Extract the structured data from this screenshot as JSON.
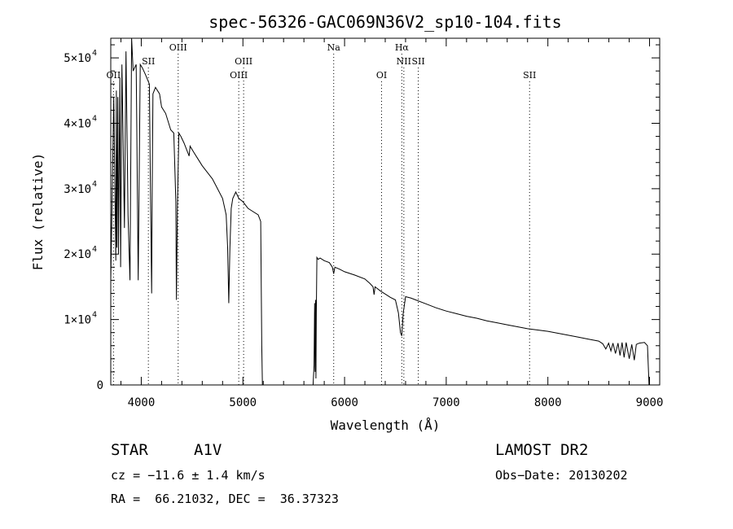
{
  "chart_data": {
    "type": "line",
    "title": "spec-56326-GAC069N36V2_sp10-104.fits",
    "xlabel": "Wavelength (Å)",
    "ylabel": "Flux (relative)",
    "xlim": [
      3700,
      9100
    ],
    "ylim": [
      0,
      53000
    ],
    "x_ticks": [
      4000,
      5000,
      6000,
      7000,
      8000,
      9000
    ],
    "y_ticks": [
      {
        "value": 0,
        "label": "0",
        "exp": ""
      },
      {
        "value": 10000,
        "label": "1×10",
        "exp": "4"
      },
      {
        "value": 20000,
        "label": "2×10",
        "exp": "4"
      },
      {
        "value": 30000,
        "label": "3×10",
        "exp": "4"
      },
      {
        "value": 40000,
        "label": "4×10",
        "exp": "4"
      },
      {
        "value": 50000,
        "label": "5×10",
        "exp": "4"
      }
    ],
    "spectral_lines": [
      {
        "label": "OII",
        "wavelength": 3727,
        "row": 2
      },
      {
        "label": "SII",
        "wavelength": 4070,
        "row": 1
      },
      {
        "label": "OIII",
        "wavelength": 4363,
        "row": 0
      },
      {
        "label": "OIII",
        "wavelength": 4959,
        "row": 2
      },
      {
        "label": "OIII",
        "wavelength": 5007,
        "row": 1
      },
      {
        "label": "Na",
        "wavelength": 5893,
        "row": 0
      },
      {
        "label": "OI",
        "wavelength": 6364,
        "row": 2
      },
      {
        "label": "Hα",
        "wavelength": 6563,
        "row": 0
      },
      {
        "label": "NII",
        "wavelength": 6583,
        "row": 1
      },
      {
        "label": "SII",
        "wavelength": 6725,
        "row": 1
      },
      {
        "label": "SII",
        "wavelength": 7820,
        "row": 2
      }
    ],
    "series": [
      {
        "x": [
          3700,
          3730,
          3750,
          3755,
          3760,
          3770,
          3775,
          3790,
          3797,
          3810,
          3835,
          3850,
          3870,
          3889,
          3905,
          3920,
          3950,
          3970,
          3990,
          4010,
          4040,
          4080,
          4090,
          4102,
          4108,
          4115,
          4140,
          4180,
          4200,
          4240,
          4290,
          4320,
          4340,
          4346,
          4355,
          4370,
          4390,
          4420,
          4471,
          4480,
          4520,
          4560,
          4600,
          4650,
          4700,
          4750,
          4800,
          4835,
          4850,
          4861,
          4872,
          4885,
          4900,
          4930,
          4960,
          5000,
          5050,
          5100,
          5150,
          5175,
          5185,
          5192,
          5205,
          5250,
          5300,
          5400,
          5500,
          5600,
          5660,
          5690,
          5700,
          5705,
          5710,
          5715,
          5718,
          5722,
          5728,
          5740,
          5760,
          5800,
          5850,
          5880,
          5893,
          5905,
          5950,
          6000,
          6100,
          6200,
          6250,
          6280,
          6290,
          6300,
          6350,
          6400,
          6450,
          6500,
          6530,
          6550,
          6563,
          6577,
          6600,
          6650,
          6700,
          6800,
          6900,
          7000,
          7100,
          7200,
          7300,
          7400,
          7500,
          7600,
          7700,
          7800,
          7900,
          8000,
          8100,
          8200,
          8300,
          8400,
          8500,
          8540,
          8570,
          8598,
          8620,
          8640,
          8665,
          8690,
          8710,
          8730,
          8750,
          8770,
          8800,
          8825,
          8850,
          8870,
          8900,
          8950,
          8980,
          8995,
          9000
        ],
        "y": [
          16000,
          44000,
          19000,
          45000,
          21000,
          44000,
          20000,
          47000,
          18000,
          49000,
          24000,
          51000,
          26000,
          16000,
          53000,
          48000,
          49000,
          16000,
          49000,
          48500,
          47500,
          46000,
          30000,
          14000,
          30000,
          44500,
          45500,
          44500,
          42500,
          41500,
          39000,
          38500,
          28000,
          13000,
          27000,
          38500,
          38000,
          37000,
          35000,
          36500,
          35500,
          34500,
          33500,
          32500,
          31500,
          30000,
          28500,
          26000,
          21000,
          12500,
          21000,
          27000,
          28500,
          29500,
          28500,
          28000,
          27000,
          26500,
          26000,
          25000,
          6000,
          0,
          0,
          0,
          0,
          0,
          0,
          0,
          0,
          0,
          3000,
          12500,
          2000,
          13000,
          1000,
          11000,
          19500,
          19200,
          19400,
          19000,
          18700,
          18000,
          17000,
          18000,
          17700,
          17300,
          16800,
          16200,
          15500,
          15000,
          13800,
          15000,
          14400,
          13900,
          13400,
          13000,
          11000,
          8000,
          7500,
          11000,
          13500,
          13300,
          13000,
          12400,
          11800,
          11300,
          10900,
          10500,
          10200,
          9800,
          9500,
          9200,
          8900,
          8600,
          8400,
          8200,
          7900,
          7600,
          7300,
          7000,
          6700,
          6300,
          5500,
          6400,
          5200,
          6400,
          4800,
          6400,
          4500,
          6500,
          4200,
          6500,
          4000,
          6200,
          3800,
          6200,
          6400,
          6500,
          6000,
          0,
          0
        ]
      }
    ]
  },
  "info": {
    "object_type": "STAR",
    "subclass": "A1V",
    "survey": "LAMOST DR2",
    "cz": "cz = −11.6 ± 1.4 km/s",
    "obs_date": "Obs−Date: 20130202",
    "radec": "RA =  66.21032, DEC =  36.37323"
  },
  "colors": {
    "line": "#000000",
    "background": "#ffffff"
  }
}
